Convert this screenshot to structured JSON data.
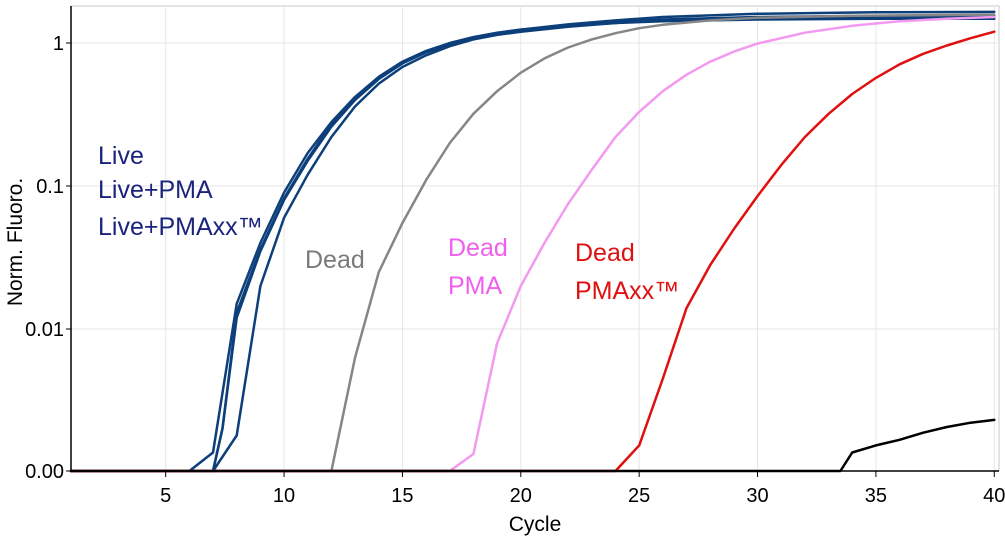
{
  "chart_data": {
    "type": "line",
    "title": "",
    "xlabel": "Cycle",
    "ylabel": "Norm. Fluoro.",
    "xlim": [
      1,
      40.2
    ],
    "x_ticks": [
      "5",
      "10",
      "15",
      "20",
      "25",
      "30",
      "35",
      "40"
    ],
    "y_ticks": [
      "0.00",
      "0.01",
      "0.1",
      "1"
    ],
    "y_scale": "log",
    "grid": true,
    "colors": {
      "live": "#0d3f7a",
      "dead": "#868686",
      "dead_pma": "#f39af0",
      "dead_pmaxx": "#e01010",
      "ntc": "#000000"
    },
    "annotations": [
      {
        "text": "Live",
        "color": "#1a237e"
      },
      {
        "text": "Live+PMA",
        "color": "#1a237e"
      },
      {
        "text": "Live+PMAxx™",
        "color": "#1a237e"
      },
      {
        "text": "Dead",
        "color": "#7a7a7a"
      },
      {
        "text": "Dead",
        "color": "#f05ef0"
      },
      {
        "text": "PMA",
        "color": "#f05ef0"
      },
      {
        "text": "Dead",
        "color": "#e01010"
      },
      {
        "text": "PMAxx™",
        "color": "#e01010"
      }
    ],
    "series": [
      {
        "color_key": "live",
        "points": [
          [
            1,
            0
          ],
          [
            6,
            0
          ],
          [
            7,
            0.0013
          ],
          [
            8,
            0.015
          ],
          [
            9,
            0.04
          ],
          [
            10,
            0.09
          ],
          [
            11,
            0.17
          ],
          [
            12,
            0.28
          ],
          [
            13,
            0.42
          ],
          [
            14,
            0.58
          ],
          [
            15,
            0.74
          ],
          [
            16,
            0.88
          ],
          [
            17,
            1.0
          ],
          [
            18,
            1.1
          ],
          [
            19,
            1.18
          ],
          [
            20,
            1.24
          ],
          [
            22,
            1.32
          ],
          [
            24,
            1.38
          ],
          [
            26,
            1.42
          ],
          [
            30,
            1.46
          ],
          [
            35,
            1.48
          ],
          [
            40,
            1.48
          ]
        ]
      },
      {
        "color_key": "live",
        "points": [
          [
            1,
            0
          ],
          [
            7,
            0
          ],
          [
            7.4,
            0.003
          ],
          [
            8,
            0.012
          ],
          [
            9,
            0.035
          ],
          [
            10,
            0.08
          ],
          [
            11,
            0.15
          ],
          [
            12,
            0.26
          ],
          [
            13,
            0.4
          ],
          [
            14,
            0.56
          ],
          [
            15,
            0.72
          ],
          [
            16,
            0.86
          ],
          [
            17,
            0.98
          ],
          [
            18,
            1.08
          ],
          [
            19,
            1.16
          ],
          [
            20,
            1.22
          ],
          [
            22,
            1.32
          ],
          [
            24,
            1.4
          ],
          [
            26,
            1.46
          ],
          [
            30,
            1.52
          ],
          [
            35,
            1.55
          ],
          [
            40,
            1.56
          ]
        ]
      },
      {
        "color_key": "live",
        "points": [
          [
            1,
            0
          ],
          [
            7,
            0
          ],
          [
            7.4,
            0.003
          ],
          [
            8,
            0.013
          ],
          [
            9,
            0.036
          ],
          [
            10,
            0.082
          ],
          [
            11,
            0.155
          ],
          [
            12,
            0.27
          ],
          [
            13,
            0.41
          ],
          [
            14,
            0.57
          ],
          [
            15,
            0.73
          ],
          [
            16,
            0.87
          ],
          [
            17,
            0.99
          ],
          [
            18,
            1.09
          ],
          [
            19,
            1.17
          ],
          [
            20,
            1.24
          ],
          [
            22,
            1.35
          ],
          [
            24,
            1.44
          ],
          [
            26,
            1.52
          ],
          [
            30,
            1.6
          ],
          [
            35,
            1.64
          ],
          [
            40,
            1.65
          ]
        ]
      },
      {
        "color_key": "live",
        "points": [
          [
            1,
            0
          ],
          [
            7,
            0
          ],
          [
            8,
            0.0025
          ],
          [
            9,
            0.02
          ],
          [
            10,
            0.06
          ],
          [
            11,
            0.12
          ],
          [
            12,
            0.22
          ],
          [
            13,
            0.36
          ],
          [
            14,
            0.52
          ],
          [
            15,
            0.68
          ],
          [
            16,
            0.82
          ],
          [
            17,
            0.95
          ],
          [
            18,
            1.06
          ],
          [
            19,
            1.14
          ],
          [
            20,
            1.2
          ],
          [
            22,
            1.3
          ],
          [
            24,
            1.38
          ],
          [
            26,
            1.45
          ],
          [
            30,
            1.5
          ],
          [
            35,
            1.52
          ],
          [
            40,
            1.52
          ]
        ]
      },
      {
        "color_key": "dead",
        "points": [
          [
            1,
            0
          ],
          [
            12,
            0
          ],
          [
            13,
            0.008
          ],
          [
            14,
            0.025
          ],
          [
            15,
            0.055
          ],
          [
            16,
            0.11
          ],
          [
            17,
            0.2
          ],
          [
            18,
            0.32
          ],
          [
            19,
            0.46
          ],
          [
            20,
            0.62
          ],
          [
            21,
            0.78
          ],
          [
            22,
            0.93
          ],
          [
            23,
            1.06
          ],
          [
            24,
            1.17
          ],
          [
            25,
            1.27
          ],
          [
            26,
            1.34
          ],
          [
            28,
            1.44
          ],
          [
            30,
            1.5
          ],
          [
            34,
            1.55
          ],
          [
            40,
            1.58
          ]
        ]
      },
      {
        "color_key": "dead_pma",
        "points": [
          [
            1,
            0
          ],
          [
            17,
            0
          ],
          [
            18,
            0.0012
          ],
          [
            19,
            0.009
          ],
          [
            20,
            0.02
          ],
          [
            21,
            0.04
          ],
          [
            22,
            0.075
          ],
          [
            23,
            0.13
          ],
          [
            24,
            0.22
          ],
          [
            25,
            0.33
          ],
          [
            26,
            0.46
          ],
          [
            27,
            0.6
          ],
          [
            28,
            0.74
          ],
          [
            29,
            0.87
          ],
          [
            30,
            0.99
          ],
          [
            32,
            1.18
          ],
          [
            34,
            1.32
          ],
          [
            36,
            1.42
          ],
          [
            38,
            1.48
          ],
          [
            40,
            1.52
          ]
        ]
      },
      {
        "color_key": "dead_pmaxx",
        "points": [
          [
            1,
            0
          ],
          [
            24,
            0
          ],
          [
            25,
            0.0018
          ],
          [
            26,
            0.0065
          ],
          [
            27,
            0.014
          ],
          [
            28,
            0.028
          ],
          [
            29,
            0.05
          ],
          [
            30,
            0.085
          ],
          [
            31,
            0.14
          ],
          [
            32,
            0.22
          ],
          [
            33,
            0.32
          ],
          [
            34,
            0.44
          ],
          [
            35,
            0.57
          ],
          [
            36,
            0.71
          ],
          [
            37,
            0.84
          ],
          [
            38,
            0.96
          ],
          [
            39,
            1.08
          ],
          [
            40,
            1.2
          ]
        ]
      },
      {
        "color_key": "ntc",
        "points": [
          [
            1,
            0
          ],
          [
            33.5,
            0
          ],
          [
            34,
            0.0013
          ],
          [
            35,
            0.0018
          ],
          [
            36,
            0.0022
          ],
          [
            37,
            0.0027
          ],
          [
            38,
            0.0031
          ],
          [
            39,
            0.0034
          ],
          [
            40,
            0.0036
          ]
        ]
      }
    ]
  }
}
